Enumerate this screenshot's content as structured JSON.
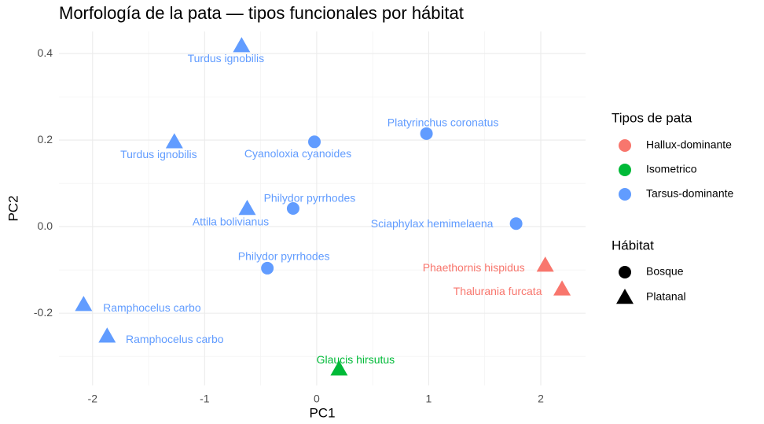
{
  "chart_data": {
    "type": "scatter",
    "title": "Morfología de la pata — tipos funcionales por hábitat",
    "xlabel": "PC1",
    "ylabel": "PC2",
    "xlim": [
      -2.3,
      2.4
    ],
    "ylim": [
      -0.367,
      0.451
    ],
    "xticks": [
      -2,
      -1,
      0,
      1,
      2
    ],
    "yticks": [
      0.4,
      0.2,
      {
        "value": 0,
        "label": "0.0"
      },
      -0.2
    ],
    "grid": true,
    "color_legend": {
      "title": "Tipos de pata",
      "items": [
        {
          "name": "Hallux-dominante",
          "color": "#F8766D"
        },
        {
          "name": "Isometrico",
          "color": "#00BA38"
        },
        {
          "name": "Tarsus-dominante",
          "color": "#619CFF"
        }
      ]
    },
    "shape_legend": {
      "title": "Hábitat",
      "items": [
        {
          "name": "Bosque",
          "shape": "circle"
        },
        {
          "name": "Platanal",
          "shape": "triangle"
        }
      ]
    },
    "points": [
      {
        "label": "Turdus ignobilis",
        "x": -0.67,
        "y": 0.418,
        "tipo": "Tarsus-dominante",
        "habitat": "Platanal"
      },
      {
        "label": "Turdus ignobilis",
        "x": -1.27,
        "y": 0.196,
        "tipo": "Tarsus-dominante",
        "habitat": "Platanal"
      },
      {
        "label": "Cyanoloxia cyanoides",
        "x": -0.02,
        "y": 0.196,
        "tipo": "Tarsus-dominante",
        "habitat": "Bosque"
      },
      {
        "label": "Platyrinchus coronatus",
        "x": 0.98,
        "y": 0.215,
        "tipo": "Tarsus-dominante",
        "habitat": "Bosque"
      },
      {
        "label": "Philydor pyrrhodes",
        "x": -0.21,
        "y": 0.042,
        "tipo": "Tarsus-dominante",
        "habitat": "Bosque"
      },
      {
        "label": "Attila bolivianus",
        "x": -0.62,
        "y": 0.042,
        "tipo": "Tarsus-dominante",
        "habitat": "Platanal"
      },
      {
        "label": "Sciaphylax hemimelaena",
        "x": 1.78,
        "y": 0.007,
        "tipo": "Tarsus-dominante",
        "habitat": "Bosque"
      },
      {
        "label": "Philydor pyrrhodes",
        "x": -0.44,
        "y": -0.096,
        "tipo": "Tarsus-dominante",
        "habitat": "Bosque"
      },
      {
        "label": "Phaethornis hispidus",
        "x": 2.04,
        "y": -0.089,
        "tipo": "Hallux-dominante",
        "habitat": "Platanal"
      },
      {
        "label": "Thalurania furcata",
        "x": 2.19,
        "y": -0.144,
        "tipo": "Hallux-dominante",
        "habitat": "Platanal"
      },
      {
        "label": "Ramphocelus carbo",
        "x": -2.08,
        "y": -0.18,
        "tipo": "Tarsus-dominante",
        "habitat": "Platanal"
      },
      {
        "label": "Ramphocelus carbo",
        "x": -1.87,
        "y": -0.253,
        "tipo": "Tarsus-dominante",
        "habitat": "Platanal"
      },
      {
        "label": "Glaucis hirsutus",
        "x": 0.2,
        "y": -0.329,
        "tipo": "Isometrico",
        "habitat": "Platanal"
      }
    ]
  }
}
